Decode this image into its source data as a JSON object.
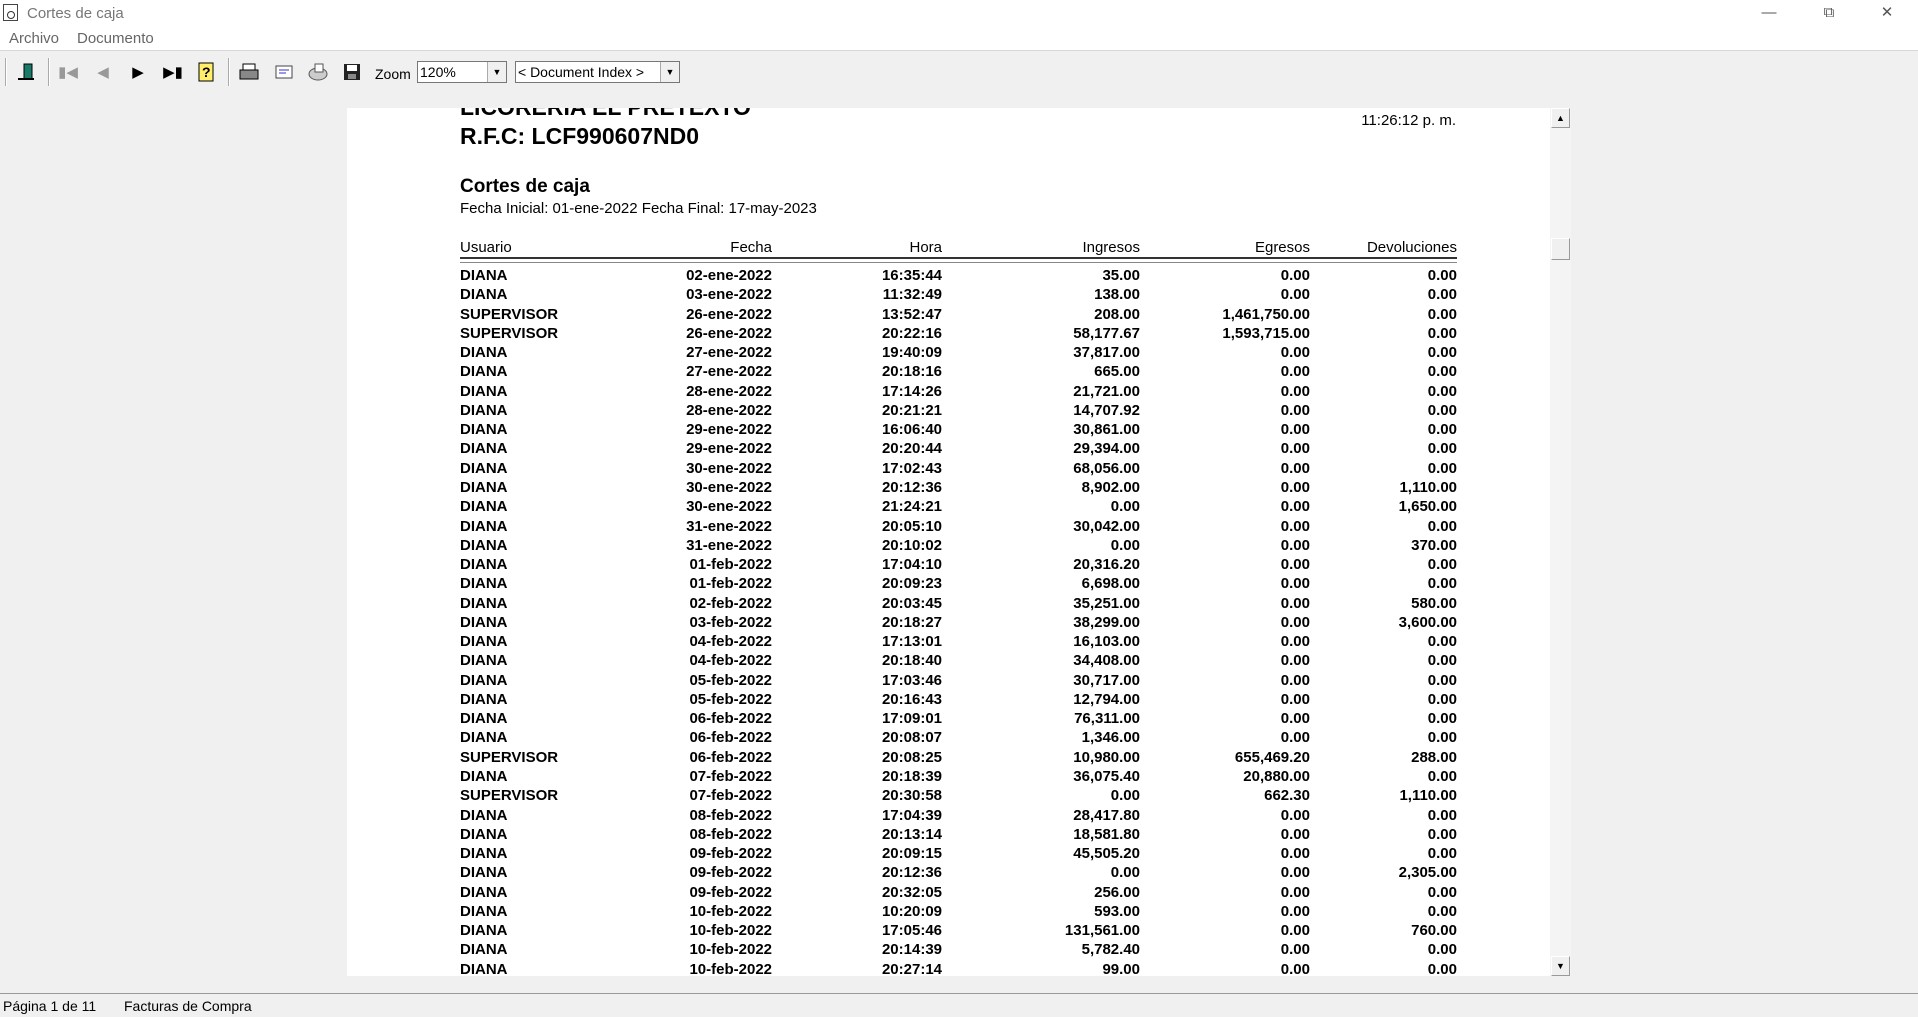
{
  "window": {
    "title": "Cortes de caja"
  },
  "menu": [
    "Archivo",
    "Documento"
  ],
  "toolbar": {
    "zoom_label": "Zoom",
    "zoom_value": "120%",
    "document_index": "< Document Index >"
  },
  "report": {
    "company": "LICORERIA EL PRETEXTO",
    "rfc": "R.F.C:  LCF990607ND0",
    "time": "11:26:12 p. m.",
    "title": "Cortes de caja",
    "range": "Fecha Inicial: 01-ene-2022 Fecha Final: 17-may-2023",
    "columns": [
      "Usuario",
      "Fecha",
      "Hora",
      "Ingresos",
      "Egresos",
      "Devoluciones"
    ],
    "rows": [
      [
        "DIANA",
        "02-ene-2022",
        "16:35:44",
        "35.00",
        "0.00",
        "0.00"
      ],
      [
        "DIANA",
        "03-ene-2022",
        "11:32:49",
        "138.00",
        "0.00",
        "0.00"
      ],
      [
        "SUPERVISOR",
        "26-ene-2022",
        "13:52:47",
        "208.00",
        "1,461,750.00",
        "0.00"
      ],
      [
        "SUPERVISOR",
        "26-ene-2022",
        "20:22:16",
        "58,177.67",
        "1,593,715.00",
        "0.00"
      ],
      [
        "DIANA",
        "27-ene-2022",
        "19:40:09",
        "37,817.00",
        "0.00",
        "0.00"
      ],
      [
        "DIANA",
        "27-ene-2022",
        "20:18:16",
        "665.00",
        "0.00",
        "0.00"
      ],
      [
        "DIANA",
        "28-ene-2022",
        "17:14:26",
        "21,721.00",
        "0.00",
        "0.00"
      ],
      [
        "DIANA",
        "28-ene-2022",
        "20:21:21",
        "14,707.92",
        "0.00",
        "0.00"
      ],
      [
        "DIANA",
        "29-ene-2022",
        "16:06:40",
        "30,861.00",
        "0.00",
        "0.00"
      ],
      [
        "DIANA",
        "29-ene-2022",
        "20:20:44",
        "29,394.00",
        "0.00",
        "0.00"
      ],
      [
        "DIANA",
        "30-ene-2022",
        "17:02:43",
        "68,056.00",
        "0.00",
        "0.00"
      ],
      [
        "DIANA",
        "30-ene-2022",
        "20:12:36",
        "8,902.00",
        "0.00",
        "1,110.00"
      ],
      [
        "DIANA",
        "30-ene-2022",
        "21:24:21",
        "0.00",
        "0.00",
        "1,650.00"
      ],
      [
        "DIANA",
        "31-ene-2022",
        "20:05:10",
        "30,042.00",
        "0.00",
        "0.00"
      ],
      [
        "DIANA",
        "31-ene-2022",
        "20:10:02",
        "0.00",
        "0.00",
        "370.00"
      ],
      [
        "DIANA",
        "01-feb-2022",
        "17:04:10",
        "20,316.20",
        "0.00",
        "0.00"
      ],
      [
        "DIANA",
        "01-feb-2022",
        "20:09:23",
        "6,698.00",
        "0.00",
        "0.00"
      ],
      [
        "DIANA",
        "02-feb-2022",
        "20:03:45",
        "35,251.00",
        "0.00",
        "580.00"
      ],
      [
        "DIANA",
        "03-feb-2022",
        "20:18:27",
        "38,299.00",
        "0.00",
        "3,600.00"
      ],
      [
        "DIANA",
        "04-feb-2022",
        "17:13:01",
        "16,103.00",
        "0.00",
        "0.00"
      ],
      [
        "DIANA",
        "04-feb-2022",
        "20:18:40",
        "34,408.00",
        "0.00",
        "0.00"
      ],
      [
        "DIANA",
        "05-feb-2022",
        "17:03:46",
        "30,717.00",
        "0.00",
        "0.00"
      ],
      [
        "DIANA",
        "05-feb-2022",
        "20:16:43",
        "12,794.00",
        "0.00",
        "0.00"
      ],
      [
        "DIANA",
        "06-feb-2022",
        "17:09:01",
        "76,311.00",
        "0.00",
        "0.00"
      ],
      [
        "DIANA",
        "06-feb-2022",
        "20:08:07",
        "1,346.00",
        "0.00",
        "0.00"
      ],
      [
        "SUPERVISOR",
        "06-feb-2022",
        "20:08:25",
        "10,980.00",
        "655,469.20",
        "288.00"
      ],
      [
        "DIANA",
        "07-feb-2022",
        "20:18:39",
        "36,075.40",
        "20,880.00",
        "0.00"
      ],
      [
        "SUPERVISOR",
        "07-feb-2022",
        "20:30:58",
        "0.00",
        "662.30",
        "1,110.00"
      ],
      [
        "DIANA",
        "08-feb-2022",
        "17:04:39",
        "28,417.80",
        "0.00",
        "0.00"
      ],
      [
        "DIANA",
        "08-feb-2022",
        "20:13:14",
        "18,581.80",
        "0.00",
        "0.00"
      ],
      [
        "DIANA",
        "09-feb-2022",
        "20:09:15",
        "45,505.20",
        "0.00",
        "0.00"
      ],
      [
        "DIANA",
        "09-feb-2022",
        "20:12:36",
        "0.00",
        "0.00",
        "2,305.00"
      ],
      [
        "DIANA",
        "09-feb-2022",
        "20:32:05",
        "256.00",
        "0.00",
        "0.00"
      ],
      [
        "DIANA",
        "10-feb-2022",
        "10:20:09",
        "593.00",
        "0.00",
        "0.00"
      ],
      [
        "DIANA",
        "10-feb-2022",
        "17:05:46",
        "131,561.00",
        "0.00",
        "760.00"
      ],
      [
        "DIANA",
        "10-feb-2022",
        "20:14:39",
        "5,782.40",
        "0.00",
        "0.00"
      ],
      [
        "DIANA",
        "10-feb-2022",
        "20:27:14",
        "99.00",
        "0.00",
        "0.00"
      ]
    ]
  },
  "status": {
    "page": "Página 1 de 11",
    "section": "Facturas de Compra"
  }
}
